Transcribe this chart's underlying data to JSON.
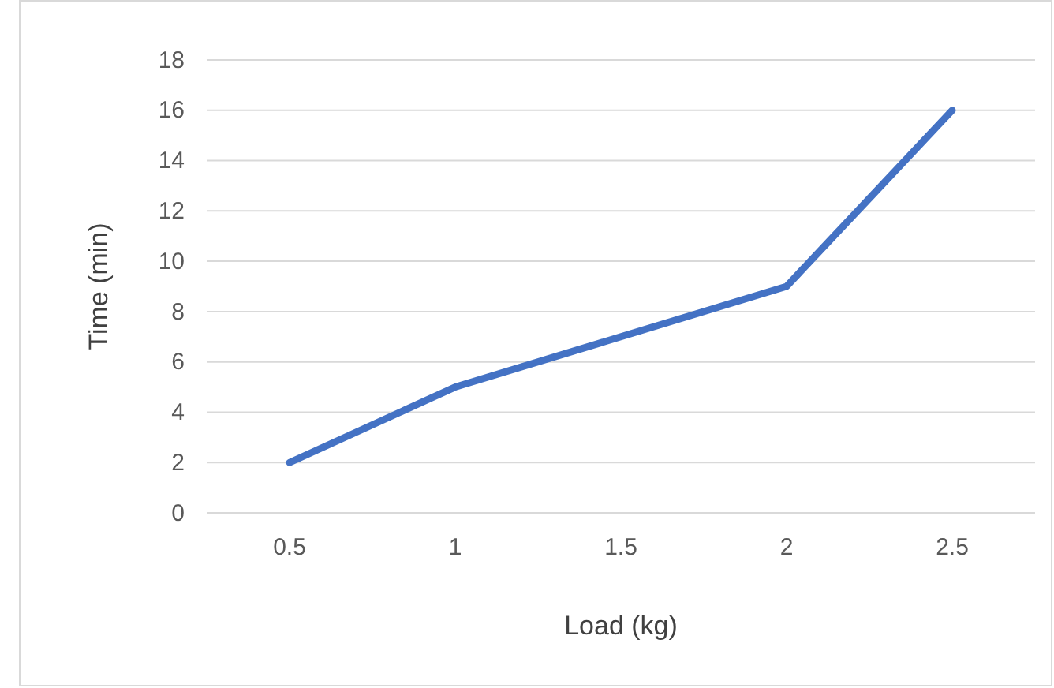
{
  "chart_data": {
    "type": "line",
    "xlabel": "Load (kg)",
    "ylabel": "Time (min)",
    "categories": [
      "0.5",
      "1",
      "1.5",
      "2",
      "2.5"
    ],
    "series": [
      {
        "color": "#4472c4",
        "values": [
          2,
          5,
          7,
          9,
          16
        ]
      }
    ],
    "ylim": [
      0,
      18
    ],
    "yticks": [
      0,
      2,
      4,
      6,
      8,
      10,
      12,
      14,
      16,
      18
    ],
    "grid": "y",
    "marker": "none",
    "line_style": "solid"
  }
}
